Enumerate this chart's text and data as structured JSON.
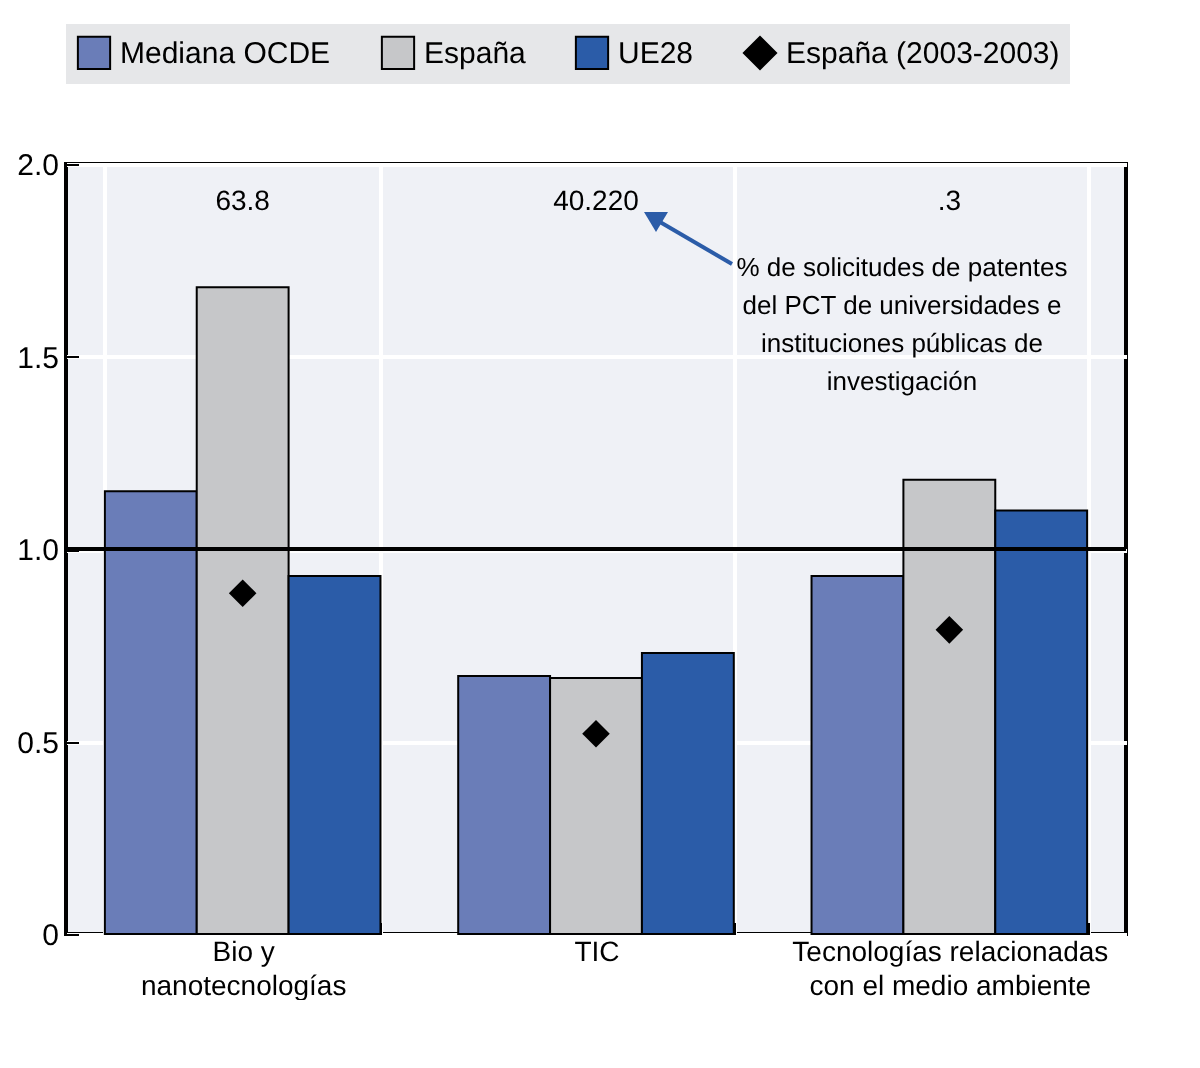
{
  "chart_data": {
    "type": "bar",
    "categories": [
      "Bio y nanotecnologías",
      "TIC",
      "Tecnologías relacionadas con el medio ambiente"
    ],
    "series": [
      {
        "name": "Mediana OCDE",
        "color": "#6a7db8",
        "values": [
          1.15,
          0.67,
          0.93
        ]
      },
      {
        "name": "España",
        "color": "#c6c7c9",
        "values": [
          1.68,
          0.665,
          1.18
        ]
      },
      {
        "name": "UE28",
        "color": "#2b5ca8",
        "values": [
          0.93,
          0.73,
          1.1
        ]
      },
      {
        "name": "España (2003-2003)",
        "type": "scatter",
        "marker": "diamond",
        "color": "#000000",
        "x": [
          "Bio y nanotecnologías",
          "TIC",
          "Tecnologías relacionadas con el medio ambiente"
        ],
        "values": [
          0.885,
          0.52,
          0.79
        ]
      }
    ],
    "ylim": [
      0,
      2
    ],
    "yticks": [
      {
        "value": 0,
        "label": "0"
      },
      {
        "value": 0.5,
        "label": "0.5"
      },
      {
        "value": 1,
        "label": "1.0"
      },
      {
        "value": 1.5,
        "label": "1.5"
      },
      {
        "value": 2,
        "label": "2.0"
      }
    ],
    "ref_lines": [
      {
        "axis": "y",
        "value": 1,
        "color": "#000000"
      }
    ],
    "annotations": [
      "63.8",
      "40.220",
      ".3",
      "% de solicitudes de patentes del PCT de universidades e instituciones públicas de investigación"
    ],
    "grid": true,
    "legend": "top"
  }
}
